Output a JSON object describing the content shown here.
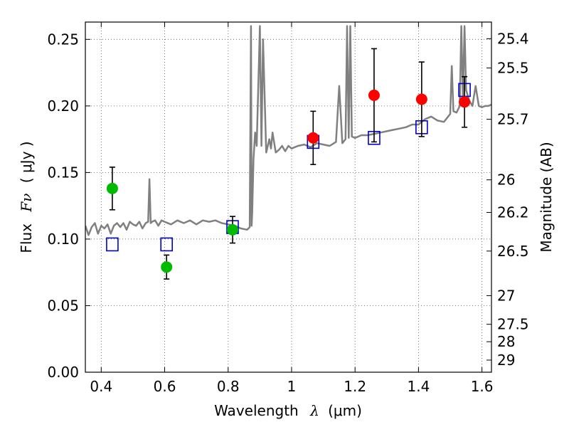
{
  "chart_data": {
    "type": "scatter",
    "xlabel": "Wavelength",
    "xlabel_symbol": "λ",
    "xlabel_unit": "(μm)",
    "ylabel": "Flux",
    "ylabel_symbol": "Fν",
    "ylabel_unit": "( μJy )",
    "y2label": "Magnitude (AB)",
    "xlim": [
      0.35,
      1.63
    ],
    "ylim": [
      0.0,
      0.263
    ],
    "grid": true,
    "x_ticks": [
      0.4,
      0.6,
      0.8,
      1.0,
      1.2,
      1.4,
      1.6
    ],
    "x_tick_labels": [
      "0.4",
      "0.6",
      "0.8",
      "1",
      "1.2",
      "1.4",
      "1.6"
    ],
    "y_ticks": [
      0.0,
      0.05,
      0.1,
      0.15,
      0.2,
      0.25
    ],
    "y_tick_labels": [
      "0.00",
      "0.05",
      "0.10",
      "0.15",
      "0.20",
      "0.25"
    ],
    "y2_ticks": [
      {
        "label": "25.4",
        "flux": 0.2505
      },
      {
        "label": "25.5",
        "flux": 0.2285
      },
      {
        "label": "25.7",
        "flux": 0.19
      },
      {
        "label": "26",
        "flux": 0.1445
      },
      {
        "label": "26.2",
        "flux": 0.12
      },
      {
        "label": "26.5",
        "flux": 0.091
      },
      {
        "label": "27",
        "flux": 0.0575
      },
      {
        "label": "27.5",
        "flux": 0.036
      },
      {
        "label": "28",
        "flux": 0.0229
      },
      {
        "label": "29",
        "flux": 0.0091
      }
    ],
    "series": [
      {
        "name": "model_spectrum",
        "kind": "line",
        "color": "#808080",
        "x": [
          0.35,
          0.36,
          0.37,
          0.38,
          0.39,
          0.4,
          0.41,
          0.42,
          0.43,
          0.44,
          0.45,
          0.46,
          0.47,
          0.48,
          0.49,
          0.5,
          0.51,
          0.52,
          0.53,
          0.54,
          0.548,
          0.552,
          0.556,
          0.56,
          0.57,
          0.58,
          0.59,
          0.6,
          0.62,
          0.64,
          0.66,
          0.68,
          0.7,
          0.72,
          0.74,
          0.76,
          0.78,
          0.8,
          0.82,
          0.84,
          0.86,
          0.868,
          0.872,
          0.874,
          0.876,
          0.878,
          0.88,
          0.885,
          0.89,
          0.9,
          0.905,
          0.91,
          0.92,
          0.93,
          0.935,
          0.94,
          0.95,
          0.96,
          0.97,
          0.98,
          0.99,
          1.0,
          1.02,
          1.04,
          1.06,
          1.08,
          1.1,
          1.12,
          1.14,
          1.15,
          1.16,
          1.17,
          1.175,
          1.18,
          1.185,
          1.19,
          1.2,
          1.22,
          1.24,
          1.26,
          1.28,
          1.3,
          1.32,
          1.34,
          1.36,
          1.38,
          1.4,
          1.42,
          1.44,
          1.46,
          1.48,
          1.5,
          1.505,
          1.51,
          1.52,
          1.53,
          1.535,
          1.54,
          1.545,
          1.55,
          1.56,
          1.57,
          1.58,
          1.59,
          1.6,
          1.61,
          1.62,
          1.63
        ],
        "y": [
          0.11,
          0.103,
          0.109,
          0.112,
          0.104,
          0.11,
          0.108,
          0.111,
          0.104,
          0.11,
          0.112,
          0.109,
          0.112,
          0.107,
          0.113,
          0.111,
          0.11,
          0.113,
          0.108,
          0.112,
          0.113,
          0.145,
          0.112,
          0.113,
          0.114,
          0.11,
          0.114,
          0.113,
          0.111,
          0.114,
          0.112,
          0.114,
          0.111,
          0.114,
          0.113,
          0.114,
          0.112,
          0.111,
          0.11,
          0.108,
          0.107,
          0.109,
          0.26,
          0.11,
          0.12,
          0.14,
          0.16,
          0.18,
          0.17,
          0.26,
          0.17,
          0.25,
          0.165,
          0.175,
          0.168,
          0.18,
          0.165,
          0.167,
          0.17,
          0.166,
          0.17,
          0.168,
          0.17,
          0.171,
          0.169,
          0.172,
          0.171,
          0.17,
          0.173,
          0.215,
          0.172,
          0.175,
          0.26,
          0.176,
          0.26,
          0.177,
          0.176,
          0.178,
          0.178,
          0.179,
          0.18,
          0.181,
          0.182,
          0.183,
          0.184,
          0.186,
          0.186,
          0.19,
          0.192,
          0.189,
          0.188,
          0.194,
          0.23,
          0.196,
          0.195,
          0.2,
          0.26,
          0.205,
          0.26,
          0.212,
          0.204,
          0.2,
          0.215,
          0.2,
          0.199,
          0.2,
          0.2,
          0.201
        ]
      },
      {
        "name": "model_bands",
        "kind": "square",
        "color": "#0000cc",
        "x": [
          0.435,
          0.606,
          0.814,
          1.068,
          1.26,
          1.41,
          1.545
        ],
        "y": [
          0.096,
          0.096,
          0.109,
          0.173,
          0.176,
          0.184,
          0.212
        ]
      },
      {
        "name": "green_points",
        "kind": "point",
        "color": "#00bb00",
        "x": [
          0.435,
          0.606,
          0.814
        ],
        "y": [
          0.138,
          0.079,
          0.107
        ],
        "yerr": [
          0.016,
          0.009,
          0.01
        ]
      },
      {
        "name": "red_points",
        "kind": "point",
        "color": "#ff0000",
        "x": [
          1.068,
          1.26,
          1.41,
          1.545
        ],
        "y": [
          0.176,
          0.208,
          0.205,
          0.203
        ],
        "yerr": [
          0.02,
          0.035,
          0.028,
          0.019
        ]
      }
    ]
  }
}
